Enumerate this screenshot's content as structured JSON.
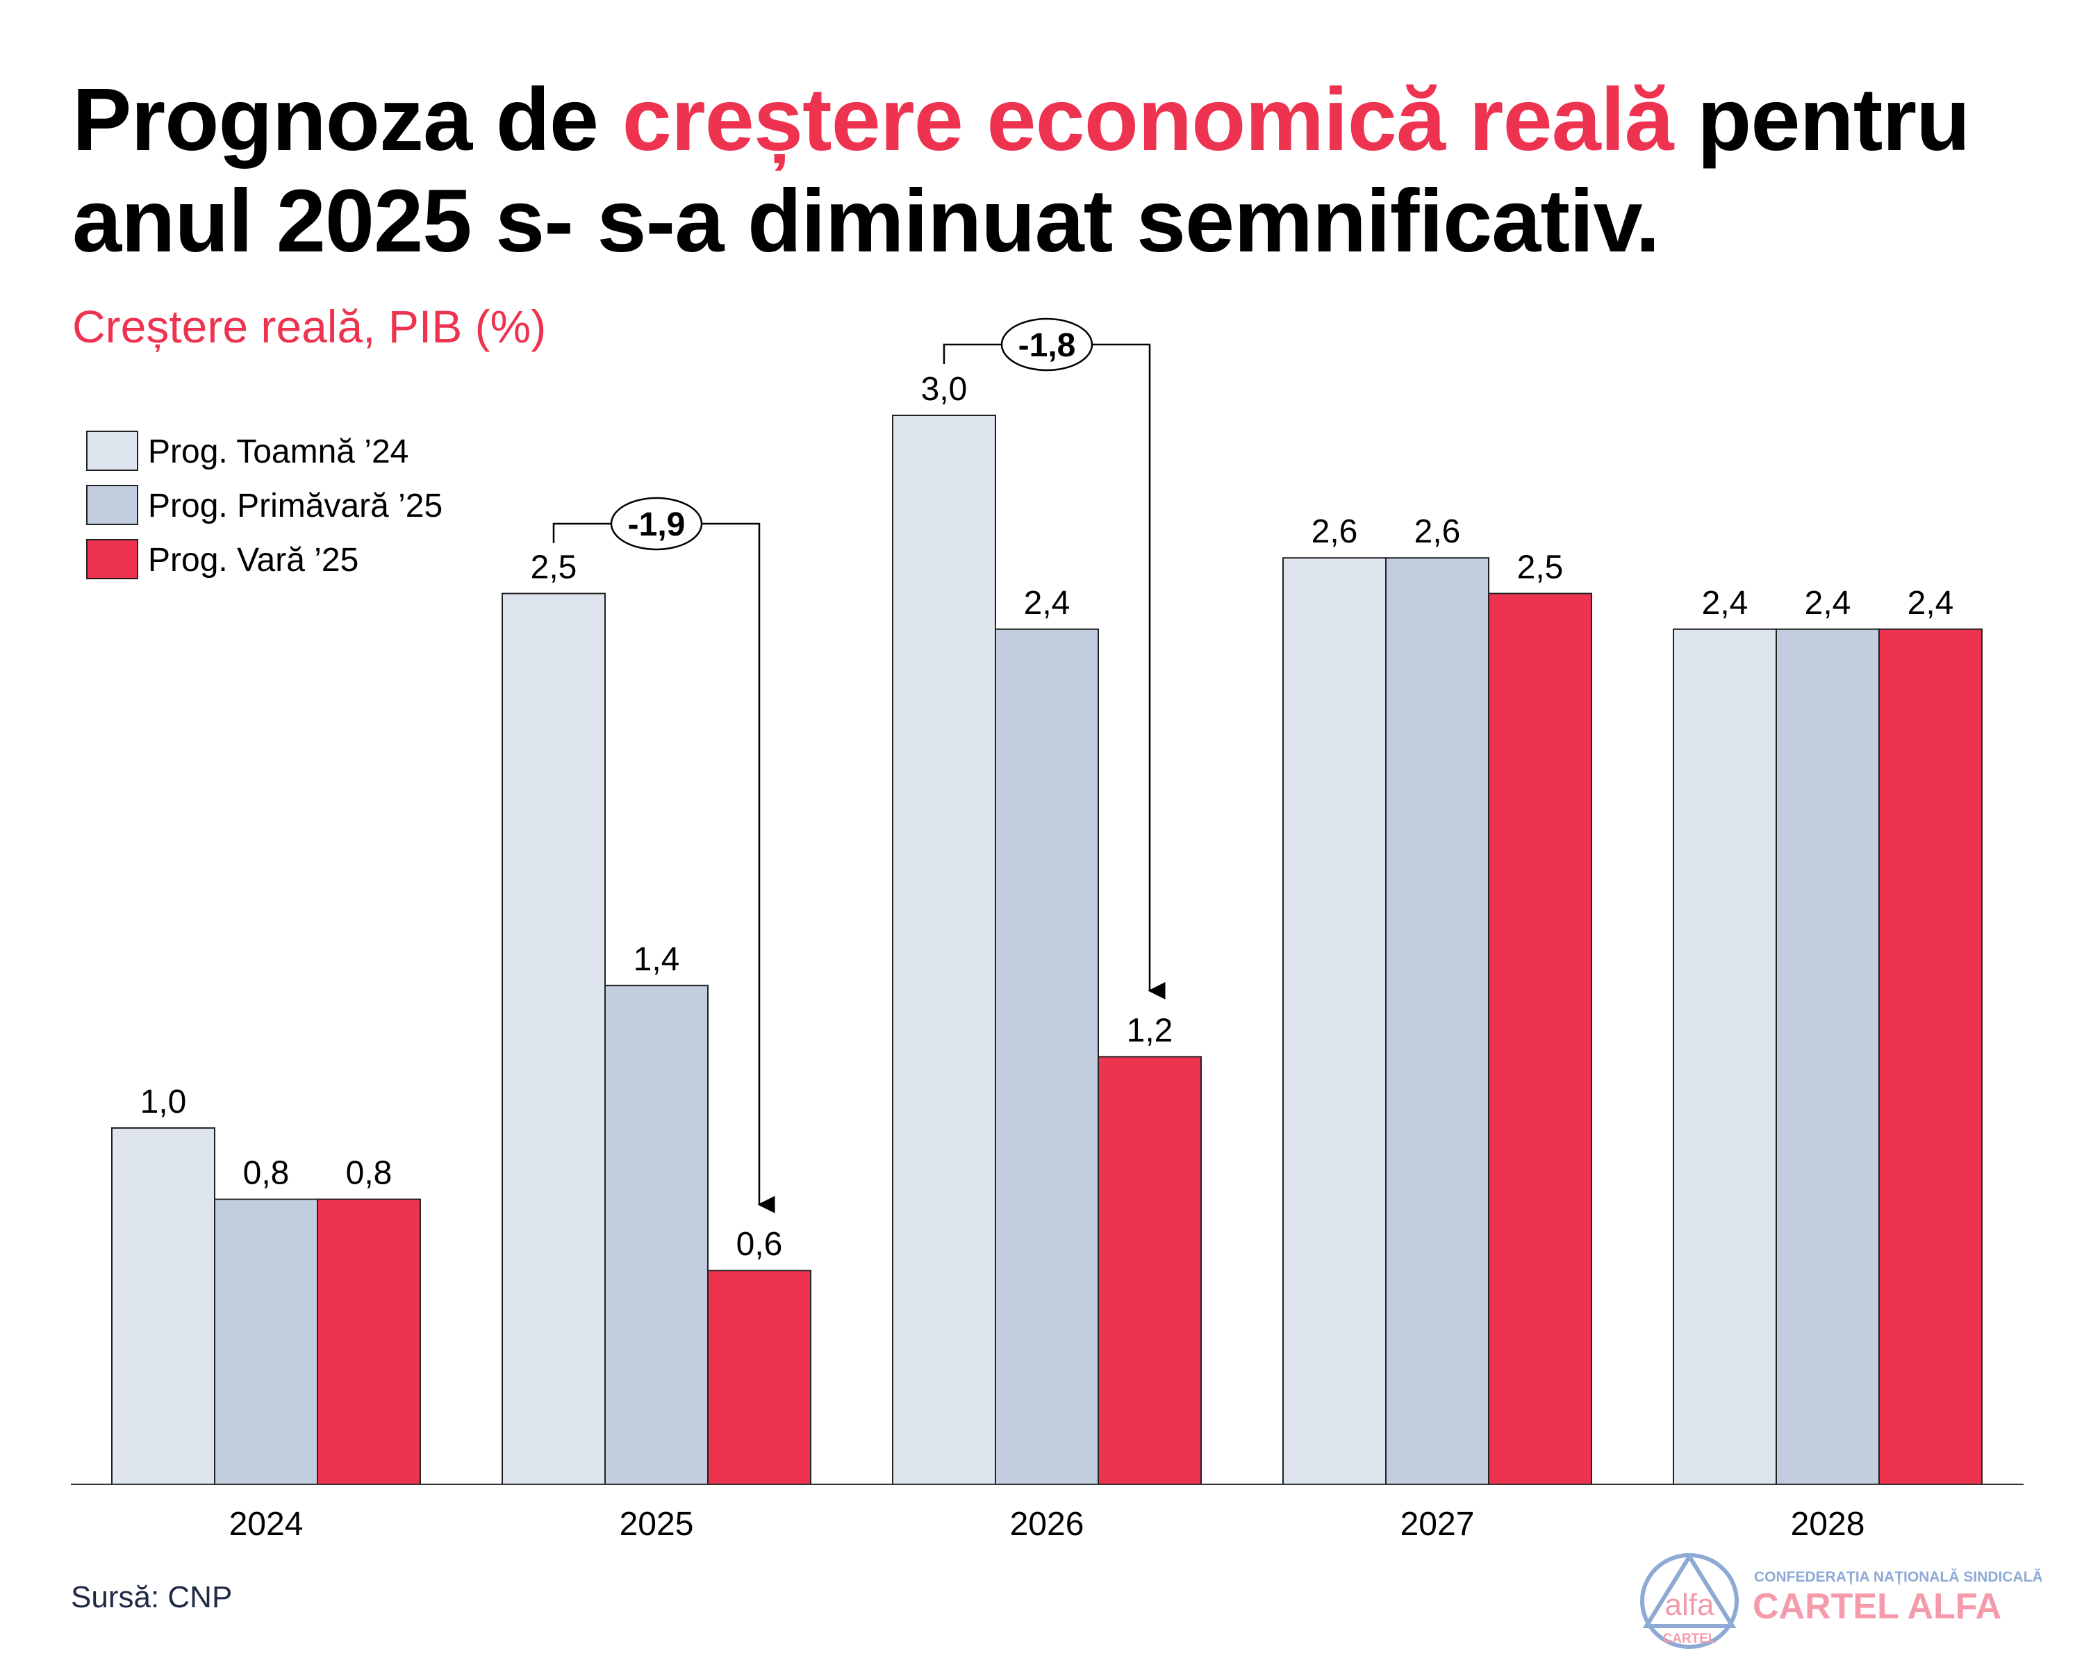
{
  "title": {
    "part1": "Prognoza de ",
    "highlight": "creștere economică reală",
    "part2": " pentru",
    "line2": "anul 2025 s- s-a diminuat semnificativ."
  },
  "subtitle": "Creștere reală, PIB (%)",
  "source": "Sursă: CNP",
  "logo": {
    "top_text": "CONFEDERAȚIA NAȚIONALĂ SINDICALĂ",
    "name": "CARTEL ALFA",
    "emblem_word": "alfa",
    "emblem_sub": "CARTEL"
  },
  "colors": {
    "accent": "#ee3350",
    "toamna": "#dfe5ef",
    "primavara": "#c3cde0",
    "vara": "#ee3350"
  },
  "chart_data": {
    "type": "bar",
    "title": "Creștere reală, PIB (%)",
    "xlabel": "",
    "ylabel": "",
    "ylim": [
      0,
      3.2
    ],
    "grid": false,
    "legend_position": "top-left",
    "categories": [
      "2024",
      "2025",
      "2026",
      "2027",
      "2028"
    ],
    "series": [
      {
        "name": "Prog. Toamnă ’24",
        "values": [
          1.0,
          2.5,
          3.0,
          2.6,
          2.4
        ],
        "labels": [
          "1,0",
          "2,5",
          "3,0",
          "2,6",
          "2,4"
        ]
      },
      {
        "name": "Prog. Primăvară ’25",
        "values": [
          0.8,
          1.4,
          2.4,
          2.6,
          2.4
        ],
        "labels": [
          "0,8",
          "1,4",
          "2,4",
          "2,6",
          "2,4"
        ]
      },
      {
        "name": "Prog. Vară ’25",
        "values": [
          0.8,
          0.6,
          1.2,
          2.5,
          2.4
        ],
        "labels": [
          "0,8",
          "0,6",
          "1,2",
          "2,5",
          "2,4"
        ]
      }
    ],
    "annotations": [
      {
        "category": "2025",
        "from_series": 0,
        "to_series": 2,
        "label": "-1,9"
      },
      {
        "category": "2026",
        "from_series": 0,
        "to_series": 2,
        "label": "-1,8"
      }
    ]
  }
}
